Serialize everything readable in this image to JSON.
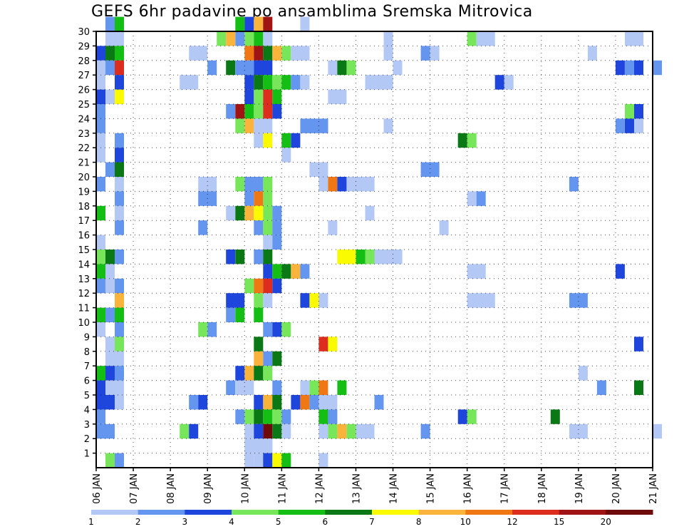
{
  "chart_data": {
    "type": "heatmap",
    "title": "GEFS 6hr padavine po ansamblima Sremska Mitrovica",
    "xlabel": "",
    "ylabel": "",
    "x_ticks": [
      "06 JAN",
      "07 JAN",
      "08 JAN",
      "09 JAN",
      "10 JAN",
      "11 JAN",
      "12 JAN",
      "13 JAN",
      "14 JAN",
      "15 JAN",
      "16 JAN",
      "17 JAN",
      "18 JAN",
      "19 JAN",
      "20 JAN",
      "21 JAN"
    ],
    "xlim": [
      0,
      15
    ],
    "y_ticks": [
      1,
      2,
      3,
      4,
      5,
      6,
      7,
      8,
      9,
      10,
      11,
      12,
      13,
      14,
      15,
      16,
      17,
      18,
      19,
      20,
      21,
      22,
      23,
      24,
      25,
      26,
      27,
      28,
      29,
      30
    ],
    "ylim": [
      0,
      30
    ],
    "grid": true,
    "legend": {
      "placement": "bottom",
      "labels": [
        "1",
        "2",
        "3",
        "4",
        "5",
        "6",
        "7",
        "8",
        "10",
        "12",
        "15",
        "20"
      ],
      "colors": [
        "#b4c8f5",
        "#6496f0",
        "#1e46dc",
        "#78e65a",
        "#14be14",
        "#0a7814",
        "#fafa00",
        "#fab43c",
        "#f07814",
        "#dc2d1e",
        "#a01414",
        "#6e0a0a"
      ]
    },
    "units_note": "cells: [member, start_day_offset, width_days, color_level]",
    "cells": [
      [
        30,
        0.25,
        0.25,
        1
      ],
      [
        30,
        0.5,
        0.25,
        4
      ],
      [
        30,
        3.75,
        0.25,
        4
      ],
      [
        30,
        4.0,
        0.25,
        2
      ],
      [
        30,
        4.25,
        0.25,
        7
      ],
      [
        30,
        4.5,
        0.25,
        10
      ],
      [
        30,
        5.5,
        0.25,
        0
      ],
      [
        29,
        0.25,
        0.5,
        0
      ],
      [
        29,
        3.25,
        0.25,
        3
      ],
      [
        29,
        3.5,
        0.25,
        7
      ],
      [
        29,
        3.75,
        0.25,
        1
      ],
      [
        29,
        4.0,
        0.25,
        3
      ],
      [
        29,
        4.25,
        0.25,
        4
      ],
      [
        29,
        4.5,
        0.25,
        0
      ],
      [
        29,
        7.75,
        0.25,
        0
      ],
      [
        29,
        10.0,
        0.25,
        3
      ],
      [
        29,
        10.25,
        0.5,
        0
      ],
      [
        29,
        14.25,
        0.5,
        0
      ],
      [
        28,
        0.0,
        0.25,
        2
      ],
      [
        28,
        0.25,
        0.25,
        5
      ],
      [
        28,
        0.5,
        0.25,
        4
      ],
      [
        28,
        2.5,
        0.5,
        0
      ],
      [
        28,
        4.0,
        0.25,
        8
      ],
      [
        28,
        4.25,
        0.25,
        10
      ],
      [
        28,
        4.5,
        0.25,
        5
      ],
      [
        28,
        4.75,
        0.25,
        7
      ],
      [
        28,
        5.0,
        0.25,
        3
      ],
      [
        28,
        5.25,
        0.5,
        0
      ],
      [
        28,
        7.75,
        0.25,
        0
      ],
      [
        28,
        8.75,
        0.25,
        1
      ],
      [
        28,
        9.0,
        0.25,
        0
      ],
      [
        28,
        13.25,
        0.25,
        0
      ],
      [
        27,
        0.0,
        0.25,
        0
      ],
      [
        27,
        0.25,
        0.25,
        1
      ],
      [
        27,
        0.5,
        0.25,
        9
      ],
      [
        27,
        3.0,
        0.25,
        1
      ],
      [
        27,
        3.5,
        0.25,
        5
      ],
      [
        27,
        3.75,
        0.5,
        1
      ],
      [
        27,
        4.25,
        0.5,
        2
      ],
      [
        27,
        6.25,
        0.25,
        0
      ],
      [
        27,
        6.5,
        0.25,
        5
      ],
      [
        27,
        6.75,
        0.25,
        3
      ],
      [
        27,
        8.0,
        0.25,
        0
      ],
      [
        27,
        14.0,
        0.25,
        2
      ],
      [
        27,
        14.25,
        0.25,
        1
      ],
      [
        27,
        14.5,
        0.25,
        2
      ],
      [
        27,
        15.0,
        0.25,
        1
      ],
      [
        26,
        0.0,
        0.25,
        0
      ],
      [
        26,
        0.5,
        0.25,
        2
      ],
      [
        26,
        2.25,
        0.5,
        0
      ],
      [
        26,
        4.0,
        0.25,
        2
      ],
      [
        26,
        4.25,
        0.25,
        5
      ],
      [
        26,
        4.5,
        0.25,
        4
      ],
      [
        26,
        4.75,
        0.25,
        3
      ],
      [
        26,
        5.0,
        0.25,
        4
      ],
      [
        26,
        5.25,
        0.25,
        1
      ],
      [
        26,
        5.5,
        0.25,
        0
      ],
      [
        26,
        7.25,
        0.75,
        0
      ],
      [
        26,
        10.75,
        0.25,
        2
      ],
      [
        26,
        11.0,
        0.25,
        0
      ],
      [
        25,
        0.0,
        0.25,
        2
      ],
      [
        25,
        0.25,
        0.25,
        0
      ],
      [
        25,
        0.5,
        0.25,
        6
      ],
      [
        25,
        4.0,
        0.25,
        2
      ],
      [
        25,
        4.25,
        0.25,
        3
      ],
      [
        25,
        4.5,
        0.25,
        9
      ],
      [
        25,
        4.75,
        0.25,
        4
      ],
      [
        25,
        6.25,
        0.5,
        0
      ],
      [
        24,
        0.0,
        0.25,
        1
      ],
      [
        24,
        3.5,
        0.25,
        1
      ],
      [
        24,
        3.75,
        0.25,
        10
      ],
      [
        24,
        4.0,
        0.25,
        4
      ],
      [
        24,
        4.25,
        0.25,
        3
      ],
      [
        24,
        4.5,
        0.25,
        9
      ],
      [
        24,
        4.75,
        0.25,
        2
      ],
      [
        24,
        14.25,
        0.25,
        3
      ],
      [
        24,
        14.5,
        0.25,
        2
      ],
      [
        23,
        0.0,
        0.25,
        1
      ],
      [
        23,
        3.75,
        0.25,
        3
      ],
      [
        23,
        4.0,
        0.25,
        7
      ],
      [
        23,
        4.25,
        0.5,
        0
      ],
      [
        23,
        5.5,
        0.75,
        1
      ],
      [
        23,
        7.75,
        0.25,
        0
      ],
      [
        23,
        14.0,
        0.25,
        1
      ],
      [
        23,
        14.25,
        0.25,
        2
      ],
      [
        23,
        14.5,
        0.25,
        0
      ],
      [
        22,
        0.0,
        0.25,
        0
      ],
      [
        22,
        0.5,
        0.25,
        1
      ],
      [
        22,
        4.25,
        0.25,
        0
      ],
      [
        22,
        4.5,
        0.25,
        6
      ],
      [
        22,
        5.0,
        0.25,
        4
      ],
      [
        22,
        5.25,
        0.25,
        2
      ],
      [
        22,
        9.75,
        0.25,
        5
      ],
      [
        22,
        10.0,
        0.25,
        3
      ],
      [
        21,
        0.0,
        0.25,
        0
      ],
      [
        21,
        0.5,
        0.25,
        2
      ],
      [
        21,
        5.0,
        0.25,
        0
      ],
      [
        20,
        0.25,
        0.25,
        1
      ],
      [
        20,
        0.5,
        0.25,
        5
      ],
      [
        20,
        5.75,
        0.5,
        0
      ],
      [
        20,
        8.75,
        0.5,
        1
      ],
      [
        19,
        0.0,
        0.25,
        1
      ],
      [
        19,
        0.5,
        0.25,
        0
      ],
      [
        19,
        2.75,
        0.5,
        0
      ],
      [
        19,
        3.75,
        0.25,
        3
      ],
      [
        19,
        4.0,
        0.5,
        1
      ],
      [
        19,
        4.5,
        0.25,
        3
      ],
      [
        19,
        6.0,
        0.25,
        0
      ],
      [
        19,
        6.25,
        0.25,
        8
      ],
      [
        19,
        6.5,
        0.25,
        2
      ],
      [
        19,
        6.75,
        0.75,
        0
      ],
      [
        19,
        12.75,
        0.25,
        1
      ],
      [
        18,
        0.5,
        0.25,
        1
      ],
      [
        18,
        2.75,
        0.5,
        1
      ],
      [
        18,
        4.0,
        0.25,
        1
      ],
      [
        18,
        4.25,
        0.25,
        8
      ],
      [
        18,
        4.5,
        0.25,
        3
      ],
      [
        18,
        10.0,
        0.25,
        0
      ],
      [
        18,
        10.25,
        0.25,
        1
      ],
      [
        17,
        0.0,
        0.25,
        4
      ],
      [
        17,
        0.5,
        0.25,
        0
      ],
      [
        17,
        3.5,
        0.25,
        0
      ],
      [
        17,
        3.75,
        0.25,
        5
      ],
      [
        17,
        4.0,
        0.25,
        7
      ],
      [
        17,
        4.25,
        0.25,
        6
      ],
      [
        17,
        4.5,
        0.25,
        3
      ],
      [
        17,
        4.75,
        0.25,
        1
      ],
      [
        17,
        7.25,
        0.25,
        0
      ],
      [
        16,
        0.5,
        0.25,
        1
      ],
      [
        16,
        2.75,
        0.25,
        1
      ],
      [
        16,
        4.25,
        0.25,
        1
      ],
      [
        16,
        4.5,
        0.25,
        3
      ],
      [
        16,
        4.75,
        0.25,
        1
      ],
      [
        16,
        6.25,
        0.25,
        0
      ],
      [
        16,
        9.25,
        0.25,
        0
      ],
      [
        15,
        0.0,
        0.25,
        0
      ],
      [
        15,
        4.5,
        0.25,
        0
      ],
      [
        15,
        4.75,
        0.25,
        1
      ],
      [
        14,
        0.0,
        0.25,
        3
      ],
      [
        14,
        0.25,
        0.25,
        5
      ],
      [
        14,
        0.5,
        0.25,
        1
      ],
      [
        14,
        3.5,
        0.25,
        2
      ],
      [
        14,
        3.75,
        0.25,
        5
      ],
      [
        14,
        4.25,
        0.25,
        1
      ],
      [
        14,
        4.5,
        0.25,
        5
      ],
      [
        14,
        6.5,
        0.5,
        6
      ],
      [
        14,
        7.0,
        0.25,
        4
      ],
      [
        14,
        7.25,
        0.25,
        3
      ],
      [
        14,
        7.5,
        0.75,
        0
      ],
      [
        13,
        0.0,
        0.25,
        4
      ],
      [
        13,
        0.25,
        0.25,
        0
      ],
      [
        13,
        4.5,
        0.25,
        2
      ],
      [
        13,
        4.75,
        0.25,
        4
      ],
      [
        13,
        5.0,
        0.25,
        5
      ],
      [
        13,
        5.25,
        0.25,
        7
      ],
      [
        13,
        5.5,
        0.25,
        1
      ],
      [
        13,
        10.0,
        0.5,
        0
      ],
      [
        13,
        14.0,
        0.25,
        2
      ],
      [
        12,
        0.0,
        0.25,
        1
      ],
      [
        12,
        0.25,
        0.25,
        0
      ],
      [
        12,
        0.5,
        0.25,
        1
      ],
      [
        12,
        4.0,
        0.25,
        3
      ],
      [
        12,
        4.25,
        0.25,
        8
      ],
      [
        12,
        4.5,
        0.25,
        9
      ],
      [
        12,
        4.75,
        0.25,
        2
      ],
      [
        11,
        0.5,
        0.25,
        7
      ],
      [
        11,
        3.5,
        0.5,
        2
      ],
      [
        11,
        4.25,
        0.25,
        3
      ],
      [
        11,
        4.5,
        0.25,
        0
      ],
      [
        11,
        5.5,
        0.25,
        2
      ],
      [
        11,
        5.75,
        0.25,
        6
      ],
      [
        11,
        6.0,
        0.25,
        0
      ],
      [
        11,
        10.0,
        0.75,
        0
      ],
      [
        11,
        12.75,
        0.5,
        1
      ],
      [
        10,
        0.0,
        0.25,
        4
      ],
      [
        10,
        0.25,
        0.25,
        1
      ],
      [
        10,
        0.5,
        0.25,
        4
      ],
      [
        10,
        3.5,
        0.25,
        1
      ],
      [
        10,
        3.75,
        0.25,
        4
      ],
      [
        10,
        4.25,
        0.25,
        4
      ],
      [
        9,
        0.0,
        0.25,
        0
      ],
      [
        9,
        0.5,
        0.25,
        1
      ],
      [
        9,
        2.75,
        0.25,
        3
      ],
      [
        9,
        3.0,
        0.25,
        1
      ],
      [
        9,
        4.5,
        0.25,
        1
      ],
      [
        9,
        4.75,
        0.25,
        2
      ],
      [
        9,
        5.0,
        0.25,
        3
      ],
      [
        8,
        0.25,
        0.25,
        0
      ],
      [
        8,
        0.5,
        0.25,
        3
      ],
      [
        8,
        4.25,
        0.25,
        5
      ],
      [
        8,
        6.0,
        0.25,
        9
      ],
      [
        8,
        6.25,
        0.25,
        6
      ],
      [
        8,
        14.5,
        0.25,
        2
      ],
      [
        7,
        0.25,
        0.5,
        0
      ],
      [
        7,
        4.25,
        0.25,
        7
      ],
      [
        7,
        4.5,
        0.25,
        1
      ],
      [
        7,
        4.75,
        0.25,
        5
      ],
      [
        6,
        0.0,
        0.25,
        4
      ],
      [
        6,
        0.25,
        0.25,
        2
      ],
      [
        6,
        0.5,
        0.25,
        1
      ],
      [
        6,
        3.75,
        0.25,
        2
      ],
      [
        6,
        4.0,
        0.25,
        7
      ],
      [
        6,
        4.25,
        0.25,
        5
      ],
      [
        6,
        4.5,
        0.25,
        3
      ],
      [
        6,
        13.0,
        0.25,
        0
      ],
      [
        5,
        0.0,
        0.25,
        2
      ],
      [
        5,
        0.25,
        0.5,
        0
      ],
      [
        5,
        3.5,
        0.25,
        1
      ],
      [
        5,
        3.75,
        0.5,
        0
      ],
      [
        5,
        4.75,
        0.25,
        1
      ],
      [
        5,
        5.5,
        0.25,
        0
      ],
      [
        5,
        5.75,
        0.25,
        3
      ],
      [
        5,
        6.0,
        0.25,
        8
      ],
      [
        5,
        6.5,
        0.25,
        4
      ],
      [
        5,
        13.5,
        0.25,
        1
      ],
      [
        5,
        14.5,
        0.25,
        5
      ],
      [
        4,
        0.0,
        0.5,
        2
      ],
      [
        4,
        0.5,
        0.25,
        0
      ],
      [
        4,
        2.5,
        0.25,
        1
      ],
      [
        4,
        2.75,
        0.25,
        2
      ],
      [
        4,
        4.25,
        0.25,
        2
      ],
      [
        4,
        4.5,
        0.25,
        7
      ],
      [
        4,
        4.75,
        0.25,
        5
      ],
      [
        4,
        5.25,
        0.25,
        2
      ],
      [
        4,
        5.5,
        0.25,
        8
      ],
      [
        4,
        5.75,
        0.25,
        1
      ],
      [
        4,
        6.0,
        0.5,
        0
      ],
      [
        4,
        7.5,
        0.25,
        1
      ],
      [
        3,
        0.0,
        0.25,
        1
      ],
      [
        3,
        3.75,
        0.25,
        1
      ],
      [
        3,
        4.0,
        0.25,
        3
      ],
      [
        3,
        4.25,
        0.25,
        5
      ],
      [
        3,
        4.5,
        0.25,
        4
      ],
      [
        3,
        4.75,
        0.25,
        3
      ],
      [
        3,
        5.0,
        0.25,
        1
      ],
      [
        3,
        6.0,
        0.25,
        4
      ],
      [
        3,
        6.25,
        0.25,
        1
      ],
      [
        3,
        9.75,
        0.25,
        2
      ],
      [
        3,
        10.0,
        0.25,
        3
      ],
      [
        3,
        12.25,
        0.25,
        5
      ],
      [
        2,
        0.0,
        0.25,
        1
      ],
      [
        2,
        0.25,
        0.25,
        1
      ],
      [
        2,
        2.25,
        0.25,
        3
      ],
      [
        2,
        2.5,
        0.25,
        2
      ],
      [
        2,
        4.0,
        0.25,
        0
      ],
      [
        2,
        4.25,
        0.25,
        2
      ],
      [
        2,
        4.5,
        0.25,
        11
      ],
      [
        2,
        4.75,
        0.25,
        5
      ],
      [
        2,
        5.0,
        0.25,
        0
      ],
      [
        2,
        6.0,
        0.25,
        0
      ],
      [
        2,
        6.25,
        0.25,
        3
      ],
      [
        2,
        6.5,
        0.25,
        7
      ],
      [
        2,
        6.75,
        0.25,
        3
      ],
      [
        2,
        7.0,
        0.5,
        0
      ],
      [
        2,
        8.75,
        0.25,
        1
      ],
      [
        2,
        12.75,
        0.5,
        0
      ],
      [
        2,
        15.0,
        0.25,
        0
      ],
      [
        1,
        4.0,
        0.75,
        0
      ],
      [
        0,
        0.25,
        0.25,
        3
      ],
      [
        0,
        0.5,
        0.25,
        1
      ],
      [
        0,
        4.0,
        0.25,
        0
      ],
      [
        0,
        4.25,
        0.25,
        0
      ],
      [
        0,
        4.5,
        0.25,
        2
      ],
      [
        0,
        4.75,
        0.25,
        6
      ],
      [
        0,
        5.0,
        0.25,
        4
      ],
      [
        0,
        6.0,
        0.25,
        0
      ]
    ]
  }
}
